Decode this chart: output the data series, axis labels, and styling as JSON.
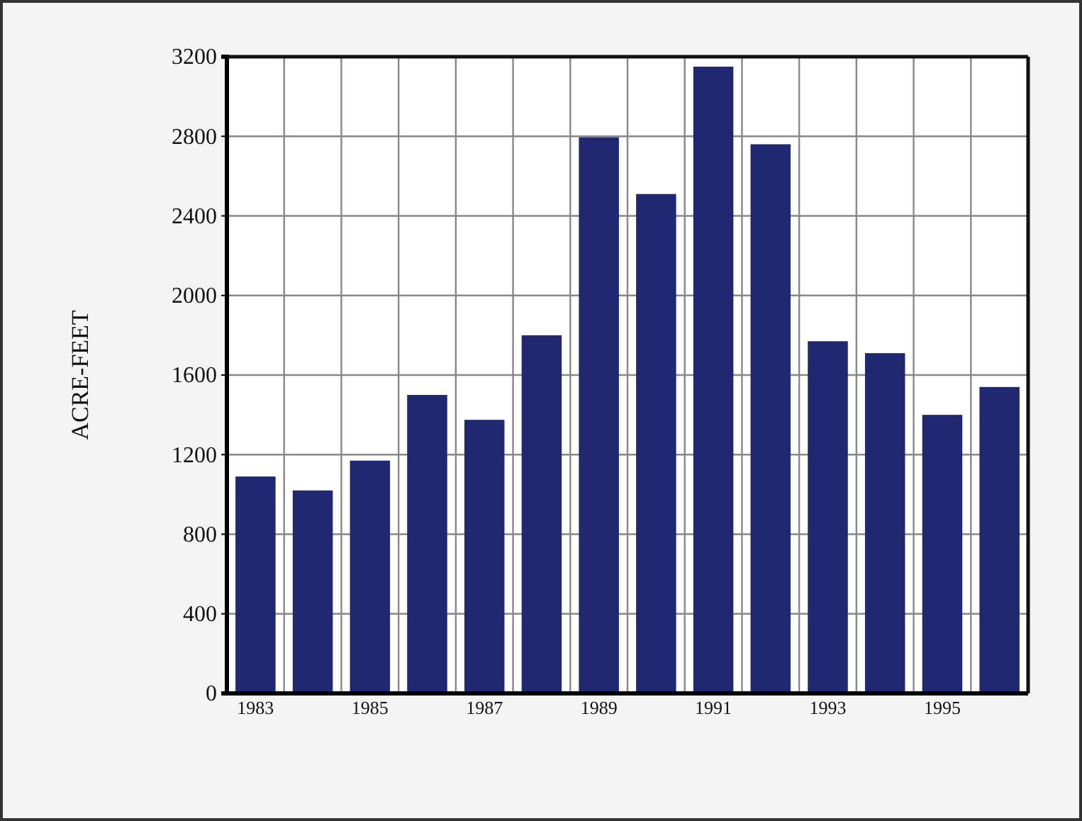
{
  "chart_data": {
    "type": "bar",
    "ylabel": "ACRE-FEET",
    "categories": [
      "1983",
      null,
      "1985",
      null,
      "1987",
      null,
      "1989",
      null,
      "1991",
      null,
      "1993",
      null,
      "1995",
      null
    ],
    "values": [
      1090,
      1020,
      1170,
      1500,
      1375,
      1800,
      2795,
      2510,
      3150,
      2760,
      1770,
      1710,
      1400,
      1540
    ],
    "color": "#1f2870",
    "ylim": [
      0,
      3200
    ],
    "yticks": [
      0,
      400,
      800,
      1200,
      1600,
      2000,
      2400,
      2800,
      3200
    ],
    "grid": true
  }
}
